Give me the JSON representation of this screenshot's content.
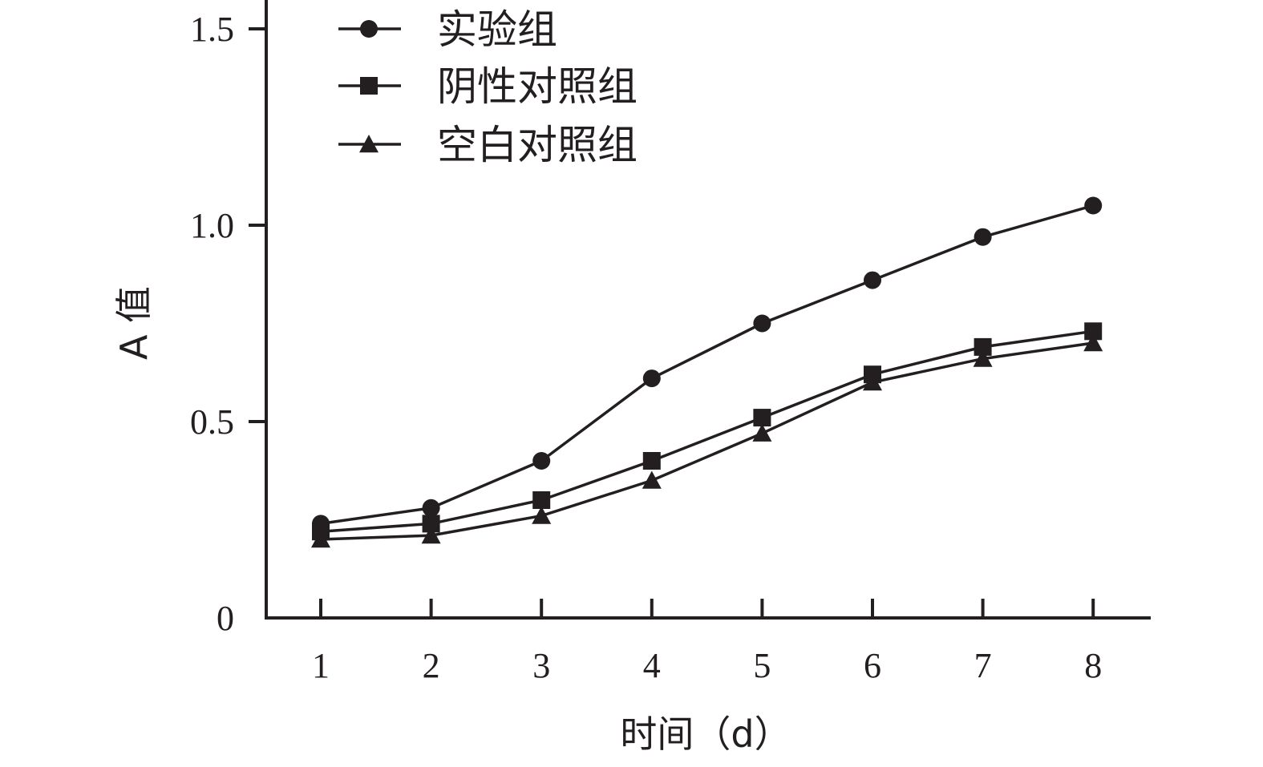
{
  "chart_data": {
    "type": "line",
    "xlabel": "时间（d）",
    "ylabel": "A 值",
    "x": [
      1,
      2,
      3,
      4,
      5,
      6,
      7,
      8
    ],
    "xticks": [
      "1",
      "2",
      "3",
      "4",
      "5",
      "6",
      "7",
      "8"
    ],
    "ylim": [
      0,
      1.5
    ],
    "yticks": [
      {
        "value": 0,
        "label": "0"
      },
      {
        "value": 0.5,
        "label": "0.5"
      },
      {
        "value": 1.0,
        "label": "1.0"
      },
      {
        "value": 1.5,
        "label": "1.5"
      }
    ],
    "grid": false,
    "legend_position": "top-left",
    "series": [
      {
        "name": "实验组",
        "marker": "circle",
        "values": [
          0.24,
          0.28,
          0.4,
          0.61,
          0.75,
          0.86,
          0.97,
          1.05
        ]
      },
      {
        "name": "阴性对照组",
        "marker": "square",
        "values": [
          0.22,
          0.24,
          0.3,
          0.4,
          0.51,
          0.62,
          0.69,
          0.73
        ]
      },
      {
        "name": "空白对照组",
        "marker": "triangle",
        "values": [
          0.2,
          0.21,
          0.26,
          0.35,
          0.47,
          0.6,
          0.66,
          0.7
        ]
      }
    ],
    "colors": {
      "ink": "#231f20",
      "background": "#ffffff"
    }
  }
}
